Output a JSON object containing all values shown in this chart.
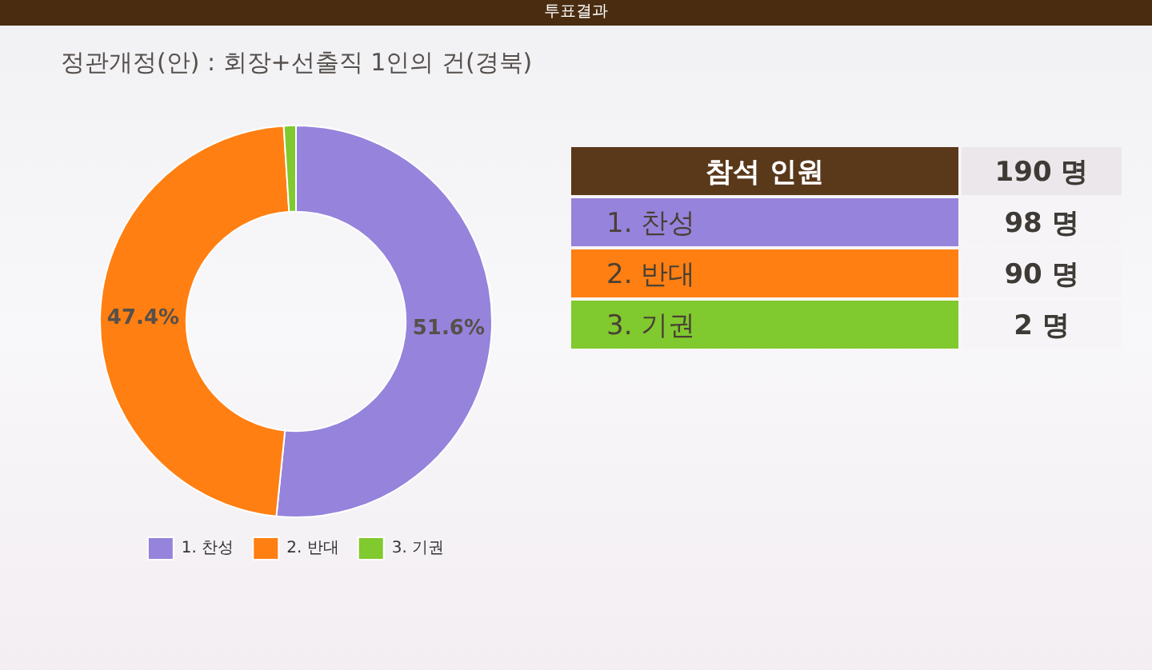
{
  "chart_data": {
    "type": "donut",
    "title": "정관개정(안) : 회장+선출직 1인의 건(경북)",
    "categories": [
      "1. 찬성",
      "2. 반대",
      "3. 기권"
    ],
    "values": [
      51.6,
      47.4,
      1.0
    ],
    "colors": [
      "#9683dc",
      "#ff7f12",
      "#80c92e"
    ],
    "value_labels": [
      "51.6%",
      "47.4%",
      null
    ],
    "legend": "bottom",
    "annotations": [
      "투표결과",
      "참석 인원",
      "190 명",
      "98 명",
      "90 명",
      "2 명"
    ]
  }
}
